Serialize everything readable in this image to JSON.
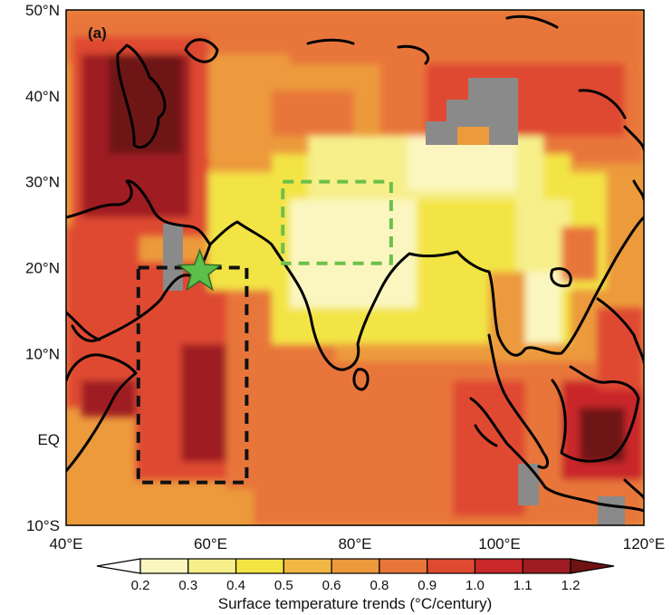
{
  "panel_label": "(a)",
  "map": {
    "lon_range": [
      40,
      120
    ],
    "lat_range": [
      -10,
      50
    ],
    "x_ticks": [
      "40°E",
      "60°E",
      "80°E",
      "100°E",
      "120°E"
    ],
    "y_ticks": [
      "50°N",
      "40°N",
      "30°N",
      "20°N",
      "10°N",
      "EQ",
      "10°S"
    ],
    "colors": {
      "masked": "#8a8a8a",
      "region_box_dark": "#111111",
      "region_box_green": "#6cc04a",
      "star": "#5cbf4a"
    },
    "marker": "star-marker",
    "boxes": [
      {
        "name": "arabian-sea-box",
        "lon": [
          50,
          65
        ],
        "lat": [
          -5,
          20
        ],
        "style": "dashed-black"
      },
      {
        "name": "north-india-box",
        "lon": [
          70,
          85
        ],
        "lat": [
          20.5,
          30
        ],
        "style": "dashed-green"
      }
    ],
    "star_location": {
      "lon": 58.5,
      "lat": 19.5
    }
  },
  "colorbar": {
    "ticks": [
      "0.2",
      "0.3",
      "0.4",
      "0.5",
      "0.6",
      "0.8",
      "0.9",
      "1.0",
      "1.1",
      "1.2"
    ],
    "colors": [
      "#ffffff",
      "#fbf6c0",
      "#f7ef8a",
      "#f3e444",
      "#f0b842",
      "#ec9a3c",
      "#e8763a",
      "#df4a30",
      "#c9282a",
      "#9e1c22",
      "#6e1214"
    ],
    "label": "Surface temperature trends (°C/century)"
  }
}
